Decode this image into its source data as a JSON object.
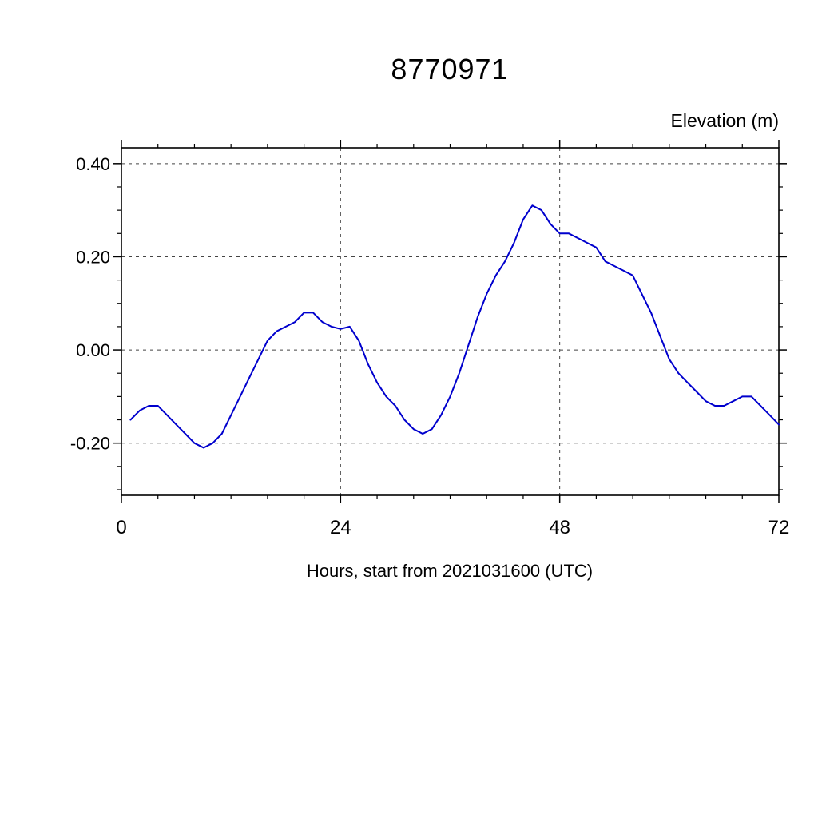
{
  "title": "8770971",
  "elevation_label": "Elevation (m)",
  "xlabel": "Hours, start from 2021031600 (UTC)",
  "chart_data": {
    "type": "line",
    "title": "8770971",
    "ylabel": "Elevation (m)",
    "xlabel": "Hours, start from 2021031600 (UTC)",
    "xlim": [
      0,
      72
    ],
    "ylim": [
      -0.312,
      0.434
    ],
    "x_major_ticks": [
      0,
      24,
      48,
      72
    ],
    "x_tick_labels": [
      "0",
      "24",
      "48",
      "72"
    ],
    "x_minor_step": 4,
    "y_major_ticks": [
      0.4,
      0.2,
      0.0,
      -0.2
    ],
    "y_tick_labels": [
      "0.40",
      "0.20",
      "0.00",
      "-0.20"
    ],
    "y_minor_step": 0.05,
    "grid": "dashed-at-major-ticks",
    "line_color": "#0000cd",
    "axis_color": "#000000",
    "grid_color": "#444444",
    "series": [
      {
        "name": "elevation",
        "x": [
          1,
          2,
          3,
          4,
          5,
          6,
          7,
          8,
          9,
          10,
          11,
          12,
          13,
          14,
          15,
          16,
          17,
          18,
          19,
          20,
          21,
          22,
          23,
          24,
          25,
          26,
          27,
          28,
          29,
          30,
          31,
          32,
          33,
          34,
          35,
          36,
          37,
          38,
          39,
          40,
          41,
          42,
          43,
          44,
          45,
          46,
          47,
          48,
          49,
          50,
          51,
          52,
          53,
          54,
          55,
          56,
          57,
          58,
          59,
          60,
          61,
          62,
          63,
          64,
          65,
          66,
          67,
          68,
          69,
          70,
          71,
          72
        ],
        "y": [
          -0.15,
          -0.13,
          -0.12,
          -0.12,
          -0.14,
          -0.16,
          -0.18,
          -0.2,
          -0.21,
          -0.2,
          -0.18,
          -0.14,
          -0.1,
          -0.06,
          -0.02,
          0.02,
          0.04,
          0.05,
          0.06,
          0.08,
          0.08,
          0.06,
          0.05,
          0.045,
          0.05,
          0.02,
          -0.03,
          -0.07,
          -0.1,
          -0.12,
          -0.15,
          -0.17,
          -0.18,
          -0.17,
          -0.14,
          -0.1,
          -0.05,
          0.01,
          0.07,
          0.12,
          0.16,
          0.19,
          0.23,
          0.28,
          0.31,
          0.3,
          0.27,
          0.25,
          0.25,
          0.24,
          0.23,
          0.22,
          0.19,
          0.18,
          0.17,
          0.16,
          0.12,
          0.08,
          0.03,
          -0.02,
          -0.05,
          -0.07,
          -0.09,
          -0.11,
          -0.12,
          -0.12,
          -0.11,
          -0.1,
          -0.1,
          -0.12,
          -0.14,
          -0.16
        ]
      }
    ]
  }
}
